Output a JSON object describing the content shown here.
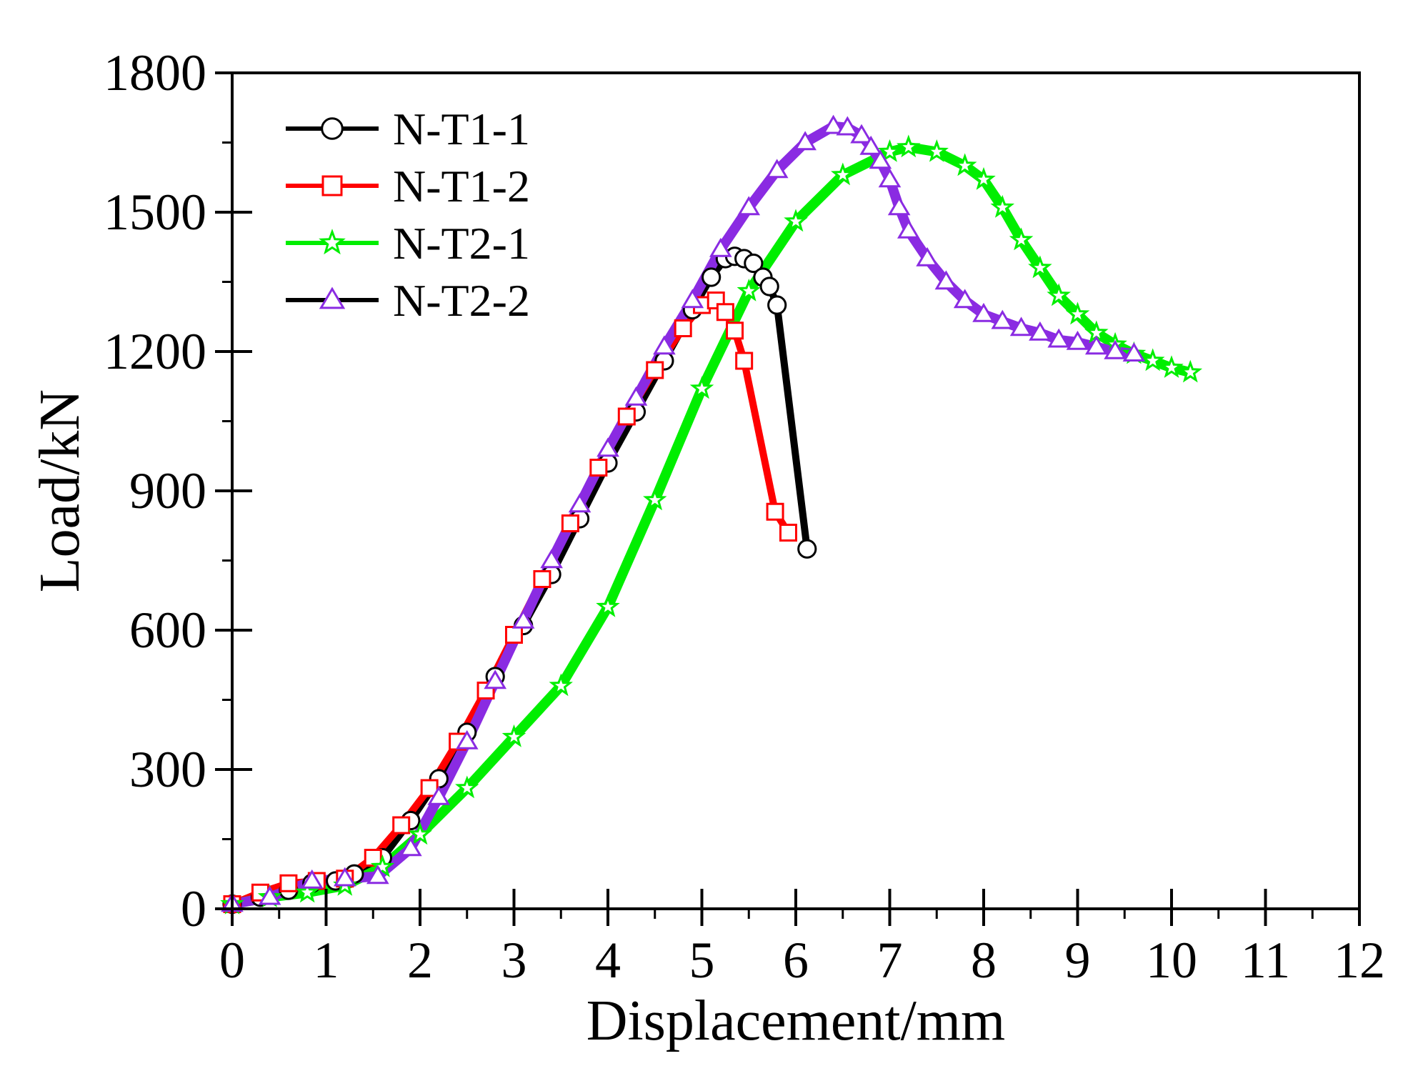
{
  "chart_data": {
    "type": "line",
    "title": "",
    "xlabel": "Displacement/mm",
    "ylabel": "Load/kN",
    "xlim": [
      0,
      12
    ],
    "ylim": [
      0,
      1800
    ],
    "xticks": [
      0,
      1,
      2,
      3,
      4,
      5,
      6,
      7,
      8,
      9,
      10,
      11,
      12
    ],
    "yticks": [
      0,
      300,
      600,
      900,
      1200,
      1500,
      1800
    ],
    "xtick_labels": [
      "0",
      "1",
      "2",
      "3",
      "4",
      "5",
      "6",
      "7",
      "8",
      "9",
      "10",
      "11",
      "12"
    ],
    "ytick_labels": [
      "0",
      "300",
      "600",
      "900",
      "1200",
      "1500",
      "1800"
    ],
    "grid": false,
    "legend_position": "top-left",
    "series": [
      {
        "name": "N-T1-1",
        "color": "#000000",
        "marker": "circle",
        "marker_color": "#000000",
        "x": [
          0,
          0.3,
          0.6,
          0.85,
          1.1,
          1.3,
          1.6,
          1.9,
          2.2,
          2.5,
          2.8,
          3.1,
          3.4,
          3.7,
          4.0,
          4.3,
          4.6,
          4.9,
          5.1,
          5.25,
          5.35,
          5.45,
          5.55,
          5.65,
          5.72,
          5.8,
          6.12
        ],
        "y": [
          10,
          25,
          40,
          55,
          60,
          75,
          110,
          190,
          280,
          380,
          500,
          610,
          720,
          840,
          960,
          1070,
          1180,
          1290,
          1360,
          1400,
          1405,
          1400,
          1390,
          1360,
          1340,
          1300,
          775
        ]
      },
      {
        "name": "N-T1-2",
        "color": "#ff0000",
        "marker": "square",
        "marker_color": "#ff0000",
        "x": [
          0,
          0.3,
          0.6,
          0.9,
          1.2,
          1.5,
          1.8,
          2.1,
          2.4,
          2.7,
          3.0,
          3.3,
          3.6,
          3.9,
          4.2,
          4.5,
          4.8,
          5.0,
          5.15,
          5.25,
          5.35,
          5.45,
          5.78,
          5.92
        ],
        "y": [
          10,
          35,
          55,
          60,
          65,
          110,
          180,
          260,
          360,
          470,
          590,
          710,
          830,
          950,
          1060,
          1160,
          1250,
          1300,
          1310,
          1285,
          1245,
          1180,
          855,
          810
        ]
      },
      {
        "name": "N-T2-1",
        "color": "#00ee00",
        "marker": "star",
        "marker_color": "#00ee00",
        "x": [
          0,
          0.4,
          0.8,
          1.2,
          1.6,
          2.0,
          2.5,
          3.0,
          3.5,
          4.0,
          4.5,
          5.0,
          5.5,
          6.0,
          6.5,
          7.0,
          7.2,
          7.5,
          7.8,
          8.0,
          8.2,
          8.4,
          8.6,
          8.8,
          9.0,
          9.2,
          9.4,
          9.6,
          9.8,
          10.0,
          10.2
        ],
        "y": [
          10,
          25,
          35,
          50,
          90,
          160,
          260,
          370,
          480,
          650,
          880,
          1120,
          1330,
          1480,
          1580,
          1630,
          1640,
          1630,
          1600,
          1570,
          1510,
          1440,
          1380,
          1320,
          1280,
          1240,
          1215,
          1195,
          1180,
          1165,
          1155
        ]
      },
      {
        "name": "N-T2-2",
        "color": "#8a2be2",
        "marker": "triangle",
        "marker_color": "#8a2be2",
        "x": [
          0,
          0.4,
          0.85,
          1.2,
          1.55,
          1.9,
          2.2,
          2.5,
          2.8,
          3.1,
          3.4,
          3.7,
          4.0,
          4.3,
          4.6,
          4.9,
          5.2,
          5.5,
          5.8,
          6.1,
          6.4,
          6.55,
          6.7,
          6.8,
          6.9,
          7.0,
          7.1,
          7.2,
          7.4,
          7.6,
          7.8,
          8.0,
          8.2,
          8.4,
          8.6,
          8.8,
          9.0,
          9.2,
          9.4,
          9.6
        ],
        "y": [
          10,
          25,
          60,
          65,
          70,
          130,
          240,
          360,
          490,
          620,
          750,
          870,
          990,
          1100,
          1210,
          1310,
          1420,
          1510,
          1590,
          1650,
          1685,
          1682,
          1665,
          1640,
          1610,
          1570,
          1510,
          1460,
          1400,
          1350,
          1310,
          1280,
          1265,
          1250,
          1240,
          1225,
          1220,
          1210,
          1200,
          1195
        ]
      }
    ]
  }
}
